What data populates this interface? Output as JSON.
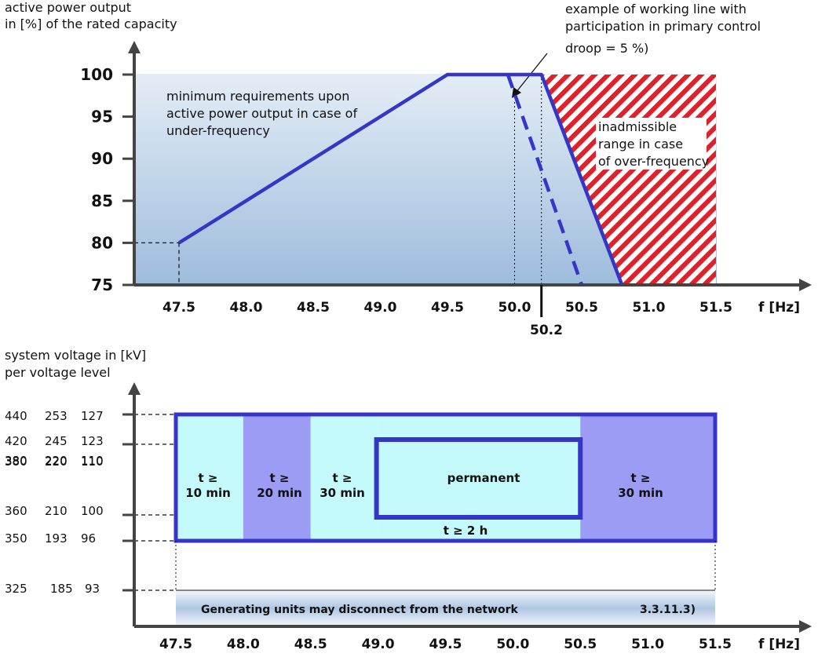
{
  "top_chart": {
    "y_label_line1": "active power output",
    "y_label_line2": "in [%] of the rated capacity",
    "x_label": "f [Hz]",
    "y_ticks": [
      "100",
      "95",
      "90",
      "85",
      "80",
      "75"
    ],
    "x_ticks": [
      "47.5",
      "48.0",
      "48.5",
      "49.0",
      "49.5",
      "50.0",
      "50.5",
      "51.0",
      "51.5"
    ],
    "extra_x_tick": "50.2",
    "annotation_min_line1": "minimum requirements upon",
    "annotation_min_line2": "active power output in case of",
    "annotation_min_line3": "under-frequency",
    "annotation_example_line1": "example of working line with",
    "annotation_example_line2": "participation in primary control",
    "annotation_example_line3": "droop = 5 %)",
    "annotation_inadmissible_line1": "inadmissible",
    "annotation_inadmissible_line2": "range in case",
    "annotation_inadmissible_line3": "of over-frequency",
    "colors": {
      "line": "#3535c8",
      "hatch": "#e0202a",
      "fill_top": "#e4edf6",
      "fill_bottom": "#9ebcdc"
    }
  },
  "chart_data": {
    "type": "line",
    "xlim": [
      47.5,
      51.5
    ],
    "ylim": [
      75,
      100
    ],
    "series": [
      {
        "style": "solid",
        "x": [
          47.5,
          49.5,
          50.2,
          50.8
        ],
        "y": [
          80,
          100,
          100,
          75
        ]
      },
      {
        "style": "dashed",
        "x": [
          49.95,
          50.5
        ],
        "y": [
          100,
          75
        ]
      }
    ],
    "inadmissible_region": {
      "x": [
        50.2,
        51.5
      ],
      "y": [
        75,
        100
      ]
    },
    "x_tick_labels": [
      "47.5",
      "48.0",
      "48.5",
      "49.0",
      "49.5",
      "50.0",
      "50.5",
      "51.0",
      "51.5"
    ],
    "y_tick_labels": [
      "100",
      "95",
      "90",
      "85",
      "80",
      "75"
    ],
    "grid": false
  },
  "bottom_chart": {
    "y_label_line1": "system voltage in [kV]",
    "y_label_line2": "per voltage level",
    "x_label": "f [Hz]",
    "x_ticks": [
      "47.5",
      "48.0",
      "48.5",
      "49.0",
      "49.5",
      "50.0",
      "50.5",
      "51.0",
      "51.5"
    ],
    "voltage_rows": [
      [
        "440",
        "253",
        "127"
      ],
      [
        "420",
        "245",
        "123"
      ],
      [
        "380",
        "220",
        "110"
      ],
      [
        "360",
        "210",
        "100"
      ],
      [
        "350",
        "193",
        "96"
      ],
      [
        "325",
        "185",
        "93"
      ]
    ],
    "bands": [
      {
        "line1": "t ≥",
        "line2": "10 min"
      },
      {
        "line1": "t ≥",
        "line2": "20 min"
      },
      {
        "line1": "t ≥",
        "line2": "30 min"
      },
      {
        "line1": "permanent",
        "line2": ""
      },
      {
        "line1": "t ≥",
        "line2": "30 min"
      }
    ],
    "band_2h": "t ≥ 2 h",
    "footer_text": "Generating units may disconnect from the network",
    "footer_ref": "3.3.11.3)",
    "colors": {
      "cyan": "#c4fafc",
      "purple": "#9c9cf5",
      "border": "#3535c8"
    }
  }
}
